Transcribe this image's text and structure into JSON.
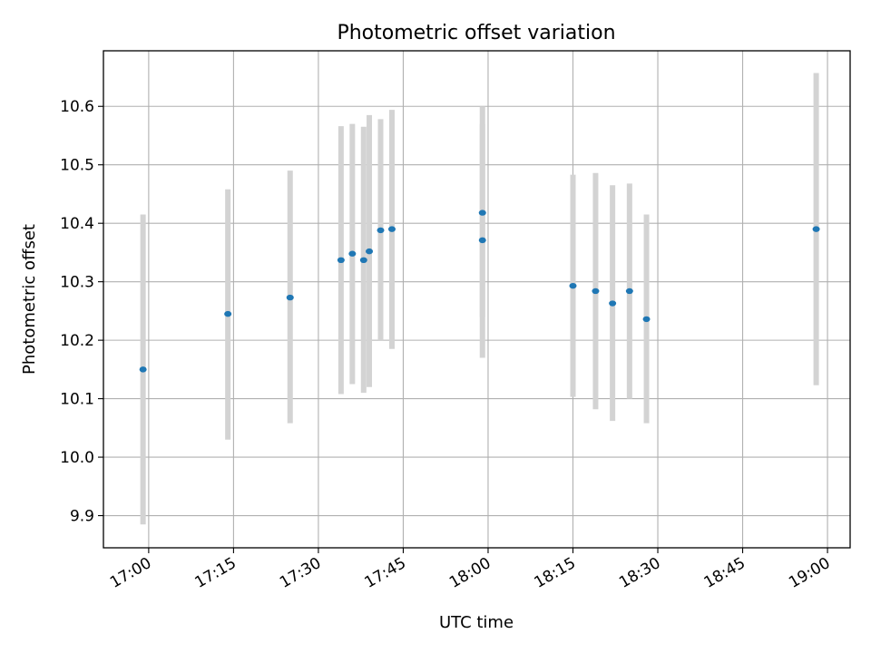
{
  "chart_data": {
    "type": "scatter",
    "title": "Photometric offset variation",
    "xlabel": "UTC time",
    "ylabel": "Photometric offset",
    "xlim": [
      "16:52",
      "19:04"
    ],
    "ylim": [
      9.845,
      10.695
    ],
    "grid": true,
    "xticks": [
      "17:00",
      "17:15",
      "17:30",
      "17:45",
      "18:00",
      "18:15",
      "18:30",
      "18:45",
      "19:00"
    ],
    "yticks": [
      "9.9",
      "10.0",
      "10.1",
      "10.2",
      "10.3",
      "10.4",
      "10.5",
      "10.6"
    ],
    "series": [
      {
        "marker_color": "#1f77b4",
        "errorbar_color": "#d3d3d3",
        "points": [
          {
            "x": "16:59",
            "y": 10.15,
            "y_low": 9.885,
            "y_high": 10.415
          },
          {
            "x": "17:14",
            "y": 10.245,
            "y_low": 10.03,
            "y_high": 10.458
          },
          {
            "x": "17:25",
            "y": 10.273,
            "y_low": 10.058,
            "y_high": 10.49
          },
          {
            "x": "17:34",
            "y": 10.337,
            "y_low": 10.108,
            "y_high": 10.566
          },
          {
            "x": "17:36",
            "y": 10.348,
            "y_low": 10.125,
            "y_high": 10.57
          },
          {
            "x": "17:38",
            "y": 10.337,
            "y_low": 10.11,
            "y_high": 10.565
          },
          {
            "x": "17:39",
            "y": 10.352,
            "y_low": 10.12,
            "y_high": 10.585
          },
          {
            "x": "17:41",
            "y": 10.388,
            "y_low": 10.2,
            "y_high": 10.578
          },
          {
            "x": "17:43",
            "y": 10.39,
            "y_low": 10.185,
            "y_high": 10.594
          },
          {
            "x": "17:59",
            "y": 10.371,
            "y_low": 10.17,
            "y_high": 10.57
          },
          {
            "x": "17:59",
            "y": 10.418,
            "y_low": 10.24,
            "y_high": 10.6
          },
          {
            "x": "18:15",
            "y": 10.293,
            "y_low": 10.103,
            "y_high": 10.483
          },
          {
            "x": "18:19",
            "y": 10.284,
            "y_low": 10.082,
            "y_high": 10.486
          },
          {
            "x": "18:22",
            "y": 10.263,
            "y_low": 10.062,
            "y_high": 10.465
          },
          {
            "x": "18:25",
            "y": 10.284,
            "y_low": 10.1,
            "y_high": 10.468
          },
          {
            "x": "18:28",
            "y": 10.236,
            "y_low": 10.058,
            "y_high": 10.415
          },
          {
            "x": "18:58",
            "y": 10.39,
            "y_low": 10.123,
            "y_high": 10.657
          }
        ]
      }
    ]
  }
}
